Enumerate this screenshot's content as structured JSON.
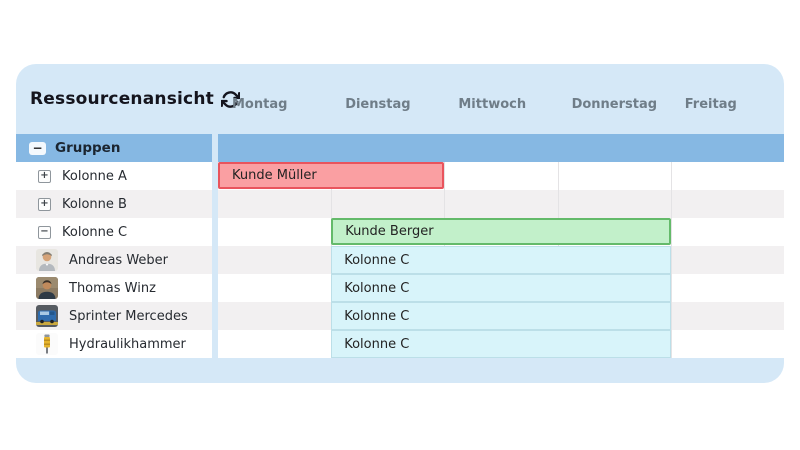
{
  "header": {
    "title": "Ressourcenansicht",
    "refresh_icon": "sync-icon"
  },
  "day_header": {
    "days": [
      "Montag",
      "Dienstag",
      "Mittwoch",
      "Donnerstag",
      "Freitag"
    ]
  },
  "sidebar": {
    "group_header": {
      "label": "Gruppen",
      "state": "expanded",
      "toggle_glyph": "−"
    },
    "items": [
      {
        "label": "Kolonne A",
        "kind": "group",
        "state": "collapsed",
        "toggle_glyph": "+"
      },
      {
        "label": "Kolonne B",
        "kind": "group",
        "state": "collapsed",
        "toggle_glyph": "+"
      },
      {
        "label": "Kolonne C",
        "kind": "group",
        "state": "expanded",
        "toggle_glyph": "−"
      },
      {
        "label": "Andreas Weber",
        "kind": "person",
        "icon": "person-avatar"
      },
      {
        "label": "Thomas Winz",
        "kind": "person",
        "icon": "person-avatar"
      },
      {
        "label": "Sprinter Mercedes",
        "kind": "vehicle",
        "icon": "van-avatar"
      },
      {
        "label": "Hydraulikhammer",
        "kind": "equipment",
        "icon": "hammer-avatar"
      }
    ]
  },
  "schedule": {
    "bars": [
      {
        "label": "Kunde Müller",
        "row": "Kolonne A",
        "start_day": "Montag",
        "span_days": 2,
        "fill": "#fa9fa2",
        "border": "#e9545d"
      },
      {
        "label": "Kunde Berger",
        "row": "Kolonne C",
        "start_day": "Dienstag",
        "span_days": 3,
        "fill": "#c2f0ca",
        "border": "#64ba6a"
      },
      {
        "label": "Kolonne C",
        "row": "Andreas Weber",
        "start_day": "Dienstag",
        "span_days": 3,
        "fill": "#d8f4fa",
        "border": "#bcdfe8"
      },
      {
        "label": "Kolonne C",
        "row": "Thomas Winz",
        "start_day": "Dienstag",
        "span_days": 3,
        "fill": "#d8f4fa",
        "border": "#bcdfe8"
      },
      {
        "label": "Kolonne C",
        "row": "Sprinter Mercedes",
        "start_day": "Dienstag",
        "span_days": 3,
        "fill": "#d8f4fa",
        "border": "#bcdfe8"
      },
      {
        "label": "Kolonne C",
        "row": "Hydraulikhammer",
        "start_day": "Dienstag",
        "span_days": 3,
        "fill": "#d8f4fa",
        "border": "#bcdfe8"
      }
    ]
  },
  "colors": {
    "panel_bg": "#d5e8f7",
    "group_row_bg": "#86b8e3",
    "row_alt_bg": "#f2f0f1",
    "day_label_text": "#6f7d88",
    "bar_red_fill": "#fa9fa2",
    "bar_red_border": "#e9545d",
    "bar_green_fill": "#c2f0ca",
    "bar_green_border": "#64ba6a",
    "bar_cyan_fill": "#d8f4fa"
  }
}
